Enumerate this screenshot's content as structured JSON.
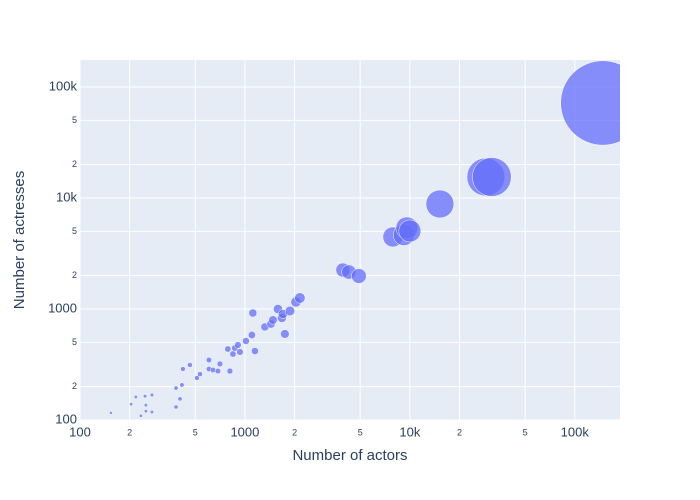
{
  "chart_data": {
    "type": "scatter",
    "log_x": true,
    "log_y": true,
    "grid": true,
    "color": "#636efa",
    "x_label": "Number of actors",
    "y_label": "Number of actresses",
    "xlim": [
      100,
      188000
    ],
    "ylim": [
      100,
      175000
    ],
    "xticks": [
      100,
      {
        "value": 200,
        "label": "2"
      },
      {
        "value": 500,
        "label": "5"
      },
      1000,
      {
        "value": 2000,
        "label": "2"
      },
      {
        "value": 5000,
        "label": "5"
      },
      {
        "value": 10000,
        "label": "10k"
      },
      {
        "value": 20000,
        "label": "2"
      },
      {
        "value": 50000,
        "label": "5"
      },
      {
        "value": 100000,
        "label": "100k"
      }
    ],
    "yticks": [
      100,
      {
        "value": 200,
        "label": "2"
      },
      {
        "value": 500,
        "label": "5"
      },
      1000,
      {
        "value": 2000,
        "label": "2"
      },
      {
        "value": 5000,
        "label": "5"
      },
      {
        "value": 10000,
        "label": "10k"
      },
      {
        "value": 20000,
        "label": "2"
      },
      {
        "value": 50000,
        "label": "5"
      },
      {
        "value": 100000,
        "label": "100k"
      }
    ],
    "x": [
      154,
      204,
      218,
      234,
      248,
      251,
      251,
      273,
      273,
      382,
      382,
      404,
      415,
      421,
      464,
      512,
      534,
      605,
      605,
      640,
      686,
      705,
      788,
      811,
      846,
      869,
      907,
      933,
      1014,
      1102,
      1117,
      1150,
      1321,
      1438,
      1479,
      1585,
      1675,
      1698,
      1746,
      1875,
      2038,
      2154,
      3926,
      4266,
      4909,
      7889,
      9204,
      9594,
      10000,
      15210,
      28900,
      31400,
      148000
    ],
    "values": [
      116,
      139,
      161,
      109,
      164,
      120,
      136,
      168,
      118,
      131,
      194,
      155,
      207,
      288,
      313,
      239,
      259,
      347,
      288,
      282,
      276,
      320,
      436,
      276,
      393,
      445,
      474,
      410,
      515,
      583,
      920,
      418,
      689,
      733,
      796,
      1000,
      830,
      901,
      596,
      960,
      1156,
      1256,
      2244,
      2154,
      1982,
      4454,
      4645,
      5370,
      5045,
      8830,
      15460,
      15460,
      71800
    ]
  }
}
